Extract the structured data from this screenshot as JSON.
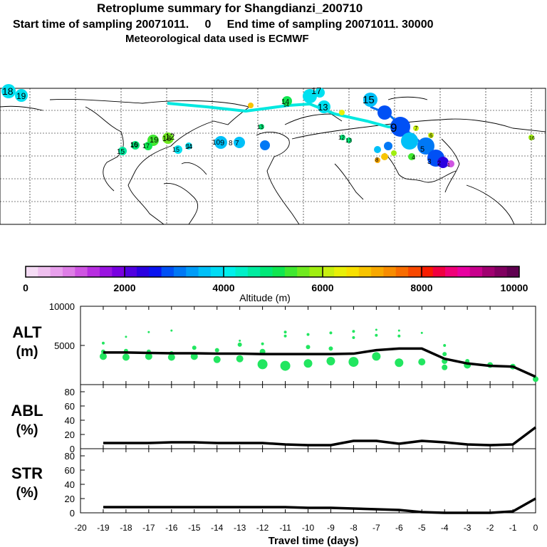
{
  "title": {
    "line1": "Retroplume summary for Shangdianzi_200710",
    "line2": "Start time of sampling 20071011.     0     End time of sampling 20071011. 30000",
    "line3": "Meteorological data used is ECMWF"
  },
  "colorbar": {
    "min": 0,
    "max": 10000,
    "tick_labels": [
      "0",
      "2000",
      "4000",
      "6000",
      "8000",
      "10000"
    ],
    "label": "Altitude (m)",
    "colors": [
      "#f5dcf5",
      "#efc0ef",
      "#e8a0ec",
      "#de7ee6",
      "#cf55e2",
      "#b82ee0",
      "#9a14e0",
      "#7800e0",
      "#5000e0",
      "#2a00e0",
      "#0a14f0",
      "#0050f5",
      "#0078f5",
      "#009cf8",
      "#00c0f8",
      "#00dcf5",
      "#00f0ec",
      "#00f0c8",
      "#00eca0",
      "#00e878",
      "#10e650",
      "#40e830",
      "#70ea20",
      "#a0ee10",
      "#c8f010",
      "#e8f008",
      "#f8e000",
      "#f8c400",
      "#f8a800",
      "#f88c00",
      "#f86c00",
      "#f84800",
      "#f81c00",
      "#f00040",
      "#f00078",
      "#e800a0",
      "#c8008c",
      "#a00070",
      "#800060",
      "#600050"
    ]
  },
  "map_labels": [
    "18",
    "19",
    "17",
    "15",
    "14",
    "13",
    "15",
    "9",
    "10",
    "10",
    "9",
    "8",
    "7",
    "19",
    "18",
    "17",
    "16",
    "15",
    "14",
    "13",
    "12",
    "11",
    "12",
    "13",
    "14",
    "16",
    "8",
    "7",
    "6",
    "5",
    "4",
    "3",
    "2",
    "1"
  ],
  "chart_data": [
    {
      "type": "line",
      "name": "ALT",
      "title": "ALT",
      "units": "(m)",
      "xlabel": "Travel time (days)",
      "x": [
        -19,
        -18,
        -17,
        -16,
        -15,
        -14,
        -13,
        -12,
        -11,
        -10,
        -9,
        -8,
        -7,
        -6,
        -5,
        -4,
        -3,
        -2,
        -1,
        0
      ],
      "y": [
        4100,
        4100,
        4050,
        4000,
        4000,
        3950,
        3950,
        3900,
        3900,
        3900,
        3900,
        3950,
        4400,
        4600,
        4600,
        3300,
        2700,
        2400,
        2300,
        1000
      ],
      "ylim": [
        0,
        10000
      ],
      "yticks": [
        "5000",
        "10000"
      ],
      "scatter": [
        {
          "x": -19,
          "y": 3600,
          "r": 5
        },
        {
          "x": -19,
          "y": 4200,
          "r": 3
        },
        {
          "x": -19,
          "y": 5300,
          "r": 2
        },
        {
          "x": -18,
          "y": 3500,
          "r": 5
        },
        {
          "x": -18,
          "y": 4300,
          "r": 3
        },
        {
          "x": -18,
          "y": 6100,
          "r": 1.5
        },
        {
          "x": -17,
          "y": 3600,
          "r": 5
        },
        {
          "x": -17,
          "y": 4200,
          "r": 3
        },
        {
          "x": -17,
          "y": 6700,
          "r": 1.5
        },
        {
          "x": -16,
          "y": 3500,
          "r": 5
        },
        {
          "x": -16,
          "y": 4000,
          "r": 3
        },
        {
          "x": -16,
          "y": 6900,
          "r": 1.5
        },
        {
          "x": -15,
          "y": 3600,
          "r": 5
        },
        {
          "x": -15,
          "y": 4700,
          "r": 3
        },
        {
          "x": -14,
          "y": 3200,
          "r": 5
        },
        {
          "x": -14,
          "y": 4400,
          "r": 3
        },
        {
          "x": -13,
          "y": 3300,
          "r": 5
        },
        {
          "x": -13,
          "y": 5100,
          "r": 3
        },
        {
          "x": -13,
          "y": 5600,
          "r": 1.5
        },
        {
          "x": -12,
          "y": 2600,
          "r": 7
        },
        {
          "x": -12,
          "y": 4200,
          "r": 4
        },
        {
          "x": -12,
          "y": 5200,
          "r": 2
        },
        {
          "x": -11,
          "y": 2400,
          "r": 7
        },
        {
          "x": -11,
          "y": 6200,
          "r": 2
        },
        {
          "x": -11,
          "y": 6700,
          "r": 2
        },
        {
          "x": -10,
          "y": 2700,
          "r": 6
        },
        {
          "x": -10,
          "y": 4800,
          "r": 3
        },
        {
          "x": -10,
          "y": 6400,
          "r": 2
        },
        {
          "x": -9,
          "y": 3000,
          "r": 6
        },
        {
          "x": -9,
          "y": 4600,
          "r": 3
        },
        {
          "x": -9,
          "y": 6600,
          "r": 2
        },
        {
          "x": -8,
          "y": 2900,
          "r": 7
        },
        {
          "x": -8,
          "y": 6000,
          "r": 2
        },
        {
          "x": -8,
          "y": 6800,
          "r": 2
        },
        {
          "x": -7,
          "y": 3600,
          "r": 6
        },
        {
          "x": -7,
          "y": 6300,
          "r": 2
        },
        {
          "x": -7,
          "y": 7000,
          "r": 1.5
        },
        {
          "x": -6,
          "y": 2800,
          "r": 6
        },
        {
          "x": -6,
          "y": 6200,
          "r": 2
        },
        {
          "x": -6,
          "y": 6900,
          "r": 1.5
        },
        {
          "x": -5,
          "y": 2900,
          "r": 5
        },
        {
          "x": -5,
          "y": 6600,
          "r": 1.5
        },
        {
          "x": -4,
          "y": 2200,
          "r": 4
        },
        {
          "x": -4,
          "y": 3000,
          "r": 4
        },
        {
          "x": -4,
          "y": 3900,
          "r": 3
        },
        {
          "x": -4,
          "y": 5000,
          "r": 2
        },
        {
          "x": -3,
          "y": 2500,
          "r": 5
        },
        {
          "x": -3,
          "y": 3000,
          "r": 3
        },
        {
          "x": -2,
          "y": 2500,
          "r": 4
        },
        {
          "x": -1,
          "y": 2300,
          "r": 4
        },
        {
          "x": 0,
          "y": 700,
          "r": 4
        }
      ]
    },
    {
      "type": "line",
      "name": "ABL",
      "title": "ABL",
      "units": "(%)",
      "x": [
        -19,
        -18,
        -17,
        -16,
        -15,
        -14,
        -13,
        -12,
        -11,
        -10,
        -9,
        -8,
        -7,
        -6,
        -5,
        -4,
        -3,
        -2,
        -1,
        0
      ],
      "y": [
        8,
        8,
        8,
        9,
        9,
        8,
        8,
        8,
        6,
        5,
        5,
        11,
        11,
        7,
        11,
        9,
        6,
        5,
        6,
        30
      ],
      "ylim": [
        0,
        90
      ],
      "yticks": [
        "0",
        "20",
        "40",
        "60",
        "80"
      ]
    },
    {
      "type": "line",
      "name": "STR",
      "title": "STR",
      "units": "(%)",
      "x": [
        -19,
        -18,
        -17,
        -16,
        -15,
        -14,
        -13,
        -12,
        -11,
        -10,
        -9,
        -8,
        -7,
        -6,
        -5,
        -4,
        -3,
        -2,
        -1,
        0
      ],
      "y": [
        8,
        8,
        8,
        8,
        8,
        8,
        8,
        8,
        8,
        7,
        7,
        6,
        5,
        4,
        1,
        0,
        0,
        0,
        2,
        20
      ],
      "ylim": [
        0,
        90
      ],
      "yticks": [
        "0",
        "20",
        "40",
        "60",
        "80"
      ]
    }
  ],
  "xaxis": {
    "range": [
      -20,
      0
    ],
    "tick_labels": [
      "-20",
      "-19",
      "-18",
      "-17",
      "-16",
      "-15",
      "-14",
      "-13",
      "-12",
      "-11",
      "-10",
      "-9",
      "-8",
      "-7",
      "-6",
      "-5",
      "-4",
      "-3",
      "-2",
      "-1",
      "0"
    ],
    "label": "Travel time (days)"
  }
}
